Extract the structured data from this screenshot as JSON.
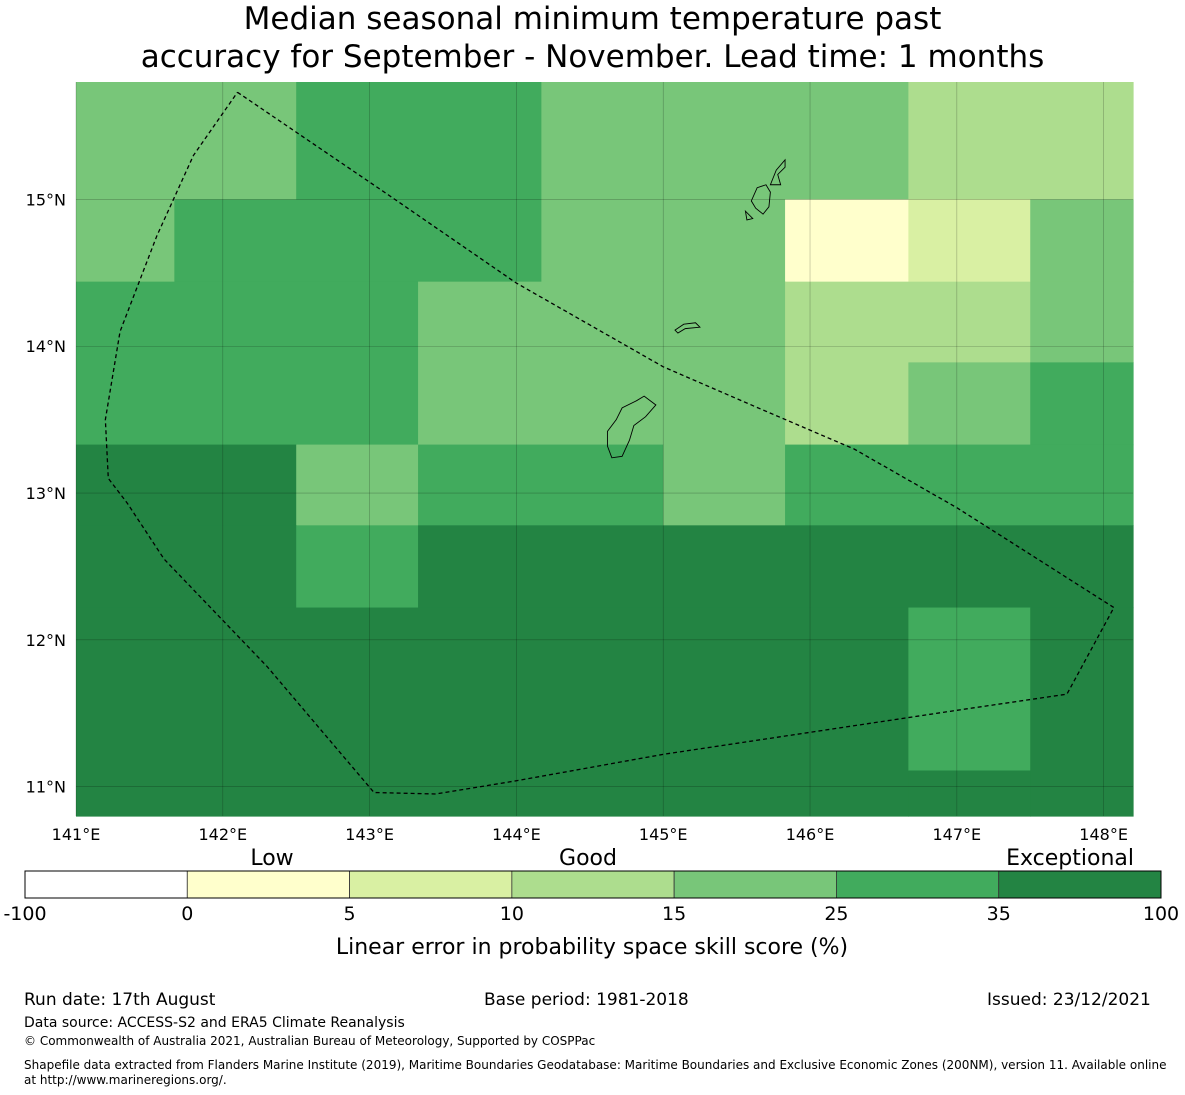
{
  "title": {
    "line1": "Median seasonal minimum temperature past",
    "line2": "accuracy for September - November. Lead time: 1 months"
  },
  "map": {
    "lon_range": [
      141.0,
      148.2
    ],
    "lat_range": [
      10.8,
      15.8
    ],
    "lon_ticks": [
      {
        "value": 141,
        "label": "141°E"
      },
      {
        "value": 142,
        "label": "142°E"
      },
      {
        "value": 143,
        "label": "143°E"
      },
      {
        "value": 144,
        "label": "144°E"
      },
      {
        "value": 145,
        "label": "145°E"
      },
      {
        "value": 146,
        "label": "146°E"
      },
      {
        "value": 147,
        "label": "147°E"
      },
      {
        "value": 148,
        "label": "148°E"
      }
    ],
    "lat_ticks": [
      {
        "value": 11,
        "label": "11°N"
      },
      {
        "value": 12,
        "label": "12°N"
      },
      {
        "value": 13,
        "label": "13°N"
      },
      {
        "value": 14,
        "label": "14°N"
      },
      {
        "value": 15,
        "label": "15°N"
      }
    ],
    "class_colors": [
      "#ffffff",
      "#ffffcc",
      "#d9f0a3",
      "#addd8e",
      "#78c679",
      "#41ab5d",
      "#238443"
    ],
    "cells": [
      {
        "lon": [
          141.0,
          142.5
        ],
        "lat": [
          15.0,
          15.8
        ],
        "class": 4
      },
      {
        "lon": [
          142.5,
          144.17
        ],
        "lat": [
          15.0,
          15.8
        ],
        "class": 5
      },
      {
        "lon": [
          144.17,
          146.67
        ],
        "lat": [
          15.0,
          15.8
        ],
        "class": 4
      },
      {
        "lon": [
          146.67,
          148.2
        ],
        "lat": [
          15.0,
          15.8
        ],
        "class": 3
      },
      {
        "lon": [
          141.0,
          141.67
        ],
        "lat": [
          14.44,
          15.0
        ],
        "class": 4
      },
      {
        "lon": [
          141.67,
          144.17
        ],
        "lat": [
          14.44,
          15.0
        ],
        "class": 5
      },
      {
        "lon": [
          144.17,
          145.83
        ],
        "lat": [
          14.44,
          15.0
        ],
        "class": 4
      },
      {
        "lon": [
          145.83,
          146.67
        ],
        "lat": [
          14.44,
          15.0
        ],
        "class": 1
      },
      {
        "lon": [
          146.67,
          147.5
        ],
        "lat": [
          14.44,
          15.0
        ],
        "class": 2
      },
      {
        "lon": [
          147.5,
          148.2
        ],
        "lat": [
          14.44,
          15.0
        ],
        "class": 4
      },
      {
        "lon": [
          141.0,
          143.33
        ],
        "lat": [
          13.33,
          14.44
        ],
        "class": 5
      },
      {
        "lon": [
          143.33,
          145.83
        ],
        "lat": [
          13.33,
          14.44
        ],
        "class": 4
      },
      {
        "lon": [
          145.83,
          147.5
        ],
        "lat": [
          13.33,
          14.44
        ],
        "class": 3
      },
      {
        "lon": [
          147.5,
          148.2
        ],
        "lat": [
          13.89,
          14.44
        ],
        "class": 4
      },
      {
        "lon": [
          146.67,
          147.5
        ],
        "lat": [
          13.33,
          13.89
        ],
        "class": 4
      },
      {
        "lon": [
          147.5,
          148.2
        ],
        "lat": [
          13.33,
          13.89
        ],
        "class": 5
      },
      {
        "lon": [
          141.0,
          142.5
        ],
        "lat": [
          12.78,
          13.33
        ],
        "class": 6
      },
      {
        "lon": [
          142.5,
          143.33
        ],
        "lat": [
          12.78,
          13.33
        ],
        "class": 4
      },
      {
        "lon": [
          143.33,
          145.0
        ],
        "lat": [
          12.78,
          13.33
        ],
        "class": 5
      },
      {
        "lon": [
          145.0,
          145.83
        ],
        "lat": [
          12.78,
          13.33
        ],
        "class": 4
      },
      {
        "lon": [
          145.83,
          148.2
        ],
        "lat": [
          12.78,
          13.33
        ],
        "class": 5
      },
      {
        "lon": [
          141.0,
          142.5
        ],
        "lat": [
          12.22,
          12.78
        ],
        "class": 6
      },
      {
        "lon": [
          142.5,
          143.33
        ],
        "lat": [
          12.22,
          12.78
        ],
        "class": 5
      },
      {
        "lon": [
          143.33,
          148.2
        ],
        "lat": [
          12.22,
          12.78
        ],
        "class": 6
      },
      {
        "lon": [
          141.0,
          146.67
        ],
        "lat": [
          10.8,
          12.22
        ],
        "class": 6
      },
      {
        "lon": [
          146.67,
          147.5
        ],
        "lat": [
          11.11,
          12.22
        ],
        "class": 5
      },
      {
        "lon": [
          146.67,
          147.5
        ],
        "lat": [
          10.8,
          11.11
        ],
        "class": 6
      },
      {
        "lon": [
          147.5,
          148.2
        ],
        "lat": [
          10.8,
          12.22
        ],
        "class": 6
      }
    ],
    "eez_boundary": [
      [
        142.1,
        15.73
      ],
      [
        143.1,
        15.05
      ],
      [
        144.0,
        14.43
      ],
      [
        145.0,
        13.86
      ],
      [
        145.6,
        13.6
      ],
      [
        146.3,
        13.3
      ],
      [
        147.0,
        12.9
      ],
      [
        148.07,
        12.22
      ],
      [
        147.75,
        11.63
      ],
      [
        147.0,
        11.52
      ],
      [
        146.0,
        11.37
      ],
      [
        145.0,
        11.22
      ],
      [
        144.0,
        11.04
      ],
      [
        143.45,
        10.95
      ],
      [
        143.03,
        10.96
      ],
      [
        142.3,
        11.82
      ],
      [
        141.6,
        12.55
      ],
      [
        141.35,
        12.93
      ],
      [
        141.22,
        13.1
      ],
      [
        141.2,
        13.5
      ],
      [
        141.3,
        14.1
      ],
      [
        141.55,
        14.75
      ],
      [
        141.8,
        15.3
      ],
      [
        142.1,
        15.73
      ]
    ],
    "islands": [
      [
        [
          144.62,
          13.42
        ],
        [
          144.68,
          13.5
        ],
        [
          144.72,
          13.58
        ],
        [
          144.82,
          13.63
        ],
        [
          144.87,
          13.66
        ],
        [
          144.95,
          13.6
        ],
        [
          144.88,
          13.52
        ],
        [
          144.8,
          13.46
        ],
        [
          144.77,
          13.36
        ],
        [
          144.72,
          13.25
        ],
        [
          144.65,
          13.24
        ],
        [
          144.62,
          13.32
        ],
        [
          144.62,
          13.42
        ]
      ],
      [
        [
          145.08,
          14.11
        ],
        [
          145.14,
          14.15
        ],
        [
          145.22,
          14.16
        ],
        [
          145.25,
          14.13
        ],
        [
          145.15,
          14.12
        ],
        [
          145.1,
          14.09
        ],
        [
          145.08,
          14.11
        ]
      ],
      [
        [
          145.56,
          14.92
        ],
        [
          145.6,
          14.88
        ],
        [
          145.61,
          14.87
        ],
        [
          145.57,
          14.86
        ],
        [
          145.56,
          14.92
        ]
      ],
      [
        [
          145.68,
          14.9
        ],
        [
          145.72,
          14.95
        ],
        [
          145.73,
          15.05
        ],
        [
          145.7,
          15.1
        ],
        [
          145.64,
          15.08
        ],
        [
          145.6,
          14.99
        ],
        [
          145.63,
          14.94
        ],
        [
          145.68,
          14.9
        ]
      ],
      [
        [
          145.73,
          15.1
        ],
        [
          145.77,
          15.2
        ],
        [
          145.83,
          15.27
        ],
        [
          145.83,
          15.22
        ],
        [
          145.78,
          15.17
        ],
        [
          145.8,
          15.1
        ],
        [
          145.73,
          15.1
        ]
      ]
    ]
  },
  "legend": {
    "category_labels": [
      "Low",
      "Good",
      "Exceptional"
    ],
    "boundaries": [
      "-100",
      "0",
      "5",
      "10",
      "15",
      "25",
      "35",
      "100"
    ],
    "colors": [
      "#ffffff",
      "#ffffcc",
      "#d9f0a3",
      "#addd8e",
      "#78c679",
      "#41ab5d",
      "#238443"
    ],
    "xlabel": "Linear error in probability space skill score (%)"
  },
  "footer": {
    "run_date": "Run date: 17th August",
    "base_period": "Base period: 1981-2018",
    "issued": "Issued: 23/12/2021",
    "data_source": "Data source: ACCESS-S2 and ERA5 Climate Reanalysis",
    "copyright": "© Commonwealth of Australia 2021, Australian Bureau of Meteorology, Supported by COSPPac",
    "shapefile_line1": "Shapefile data extracted from Flanders Marine Institute (2019), Maritime Boundaries Geodatabase: Maritime Boundaries and Exclusive Economic Zones (200NM), version 11. Available online",
    "shapefile_line2": "at http://www.marineregions.org/."
  }
}
